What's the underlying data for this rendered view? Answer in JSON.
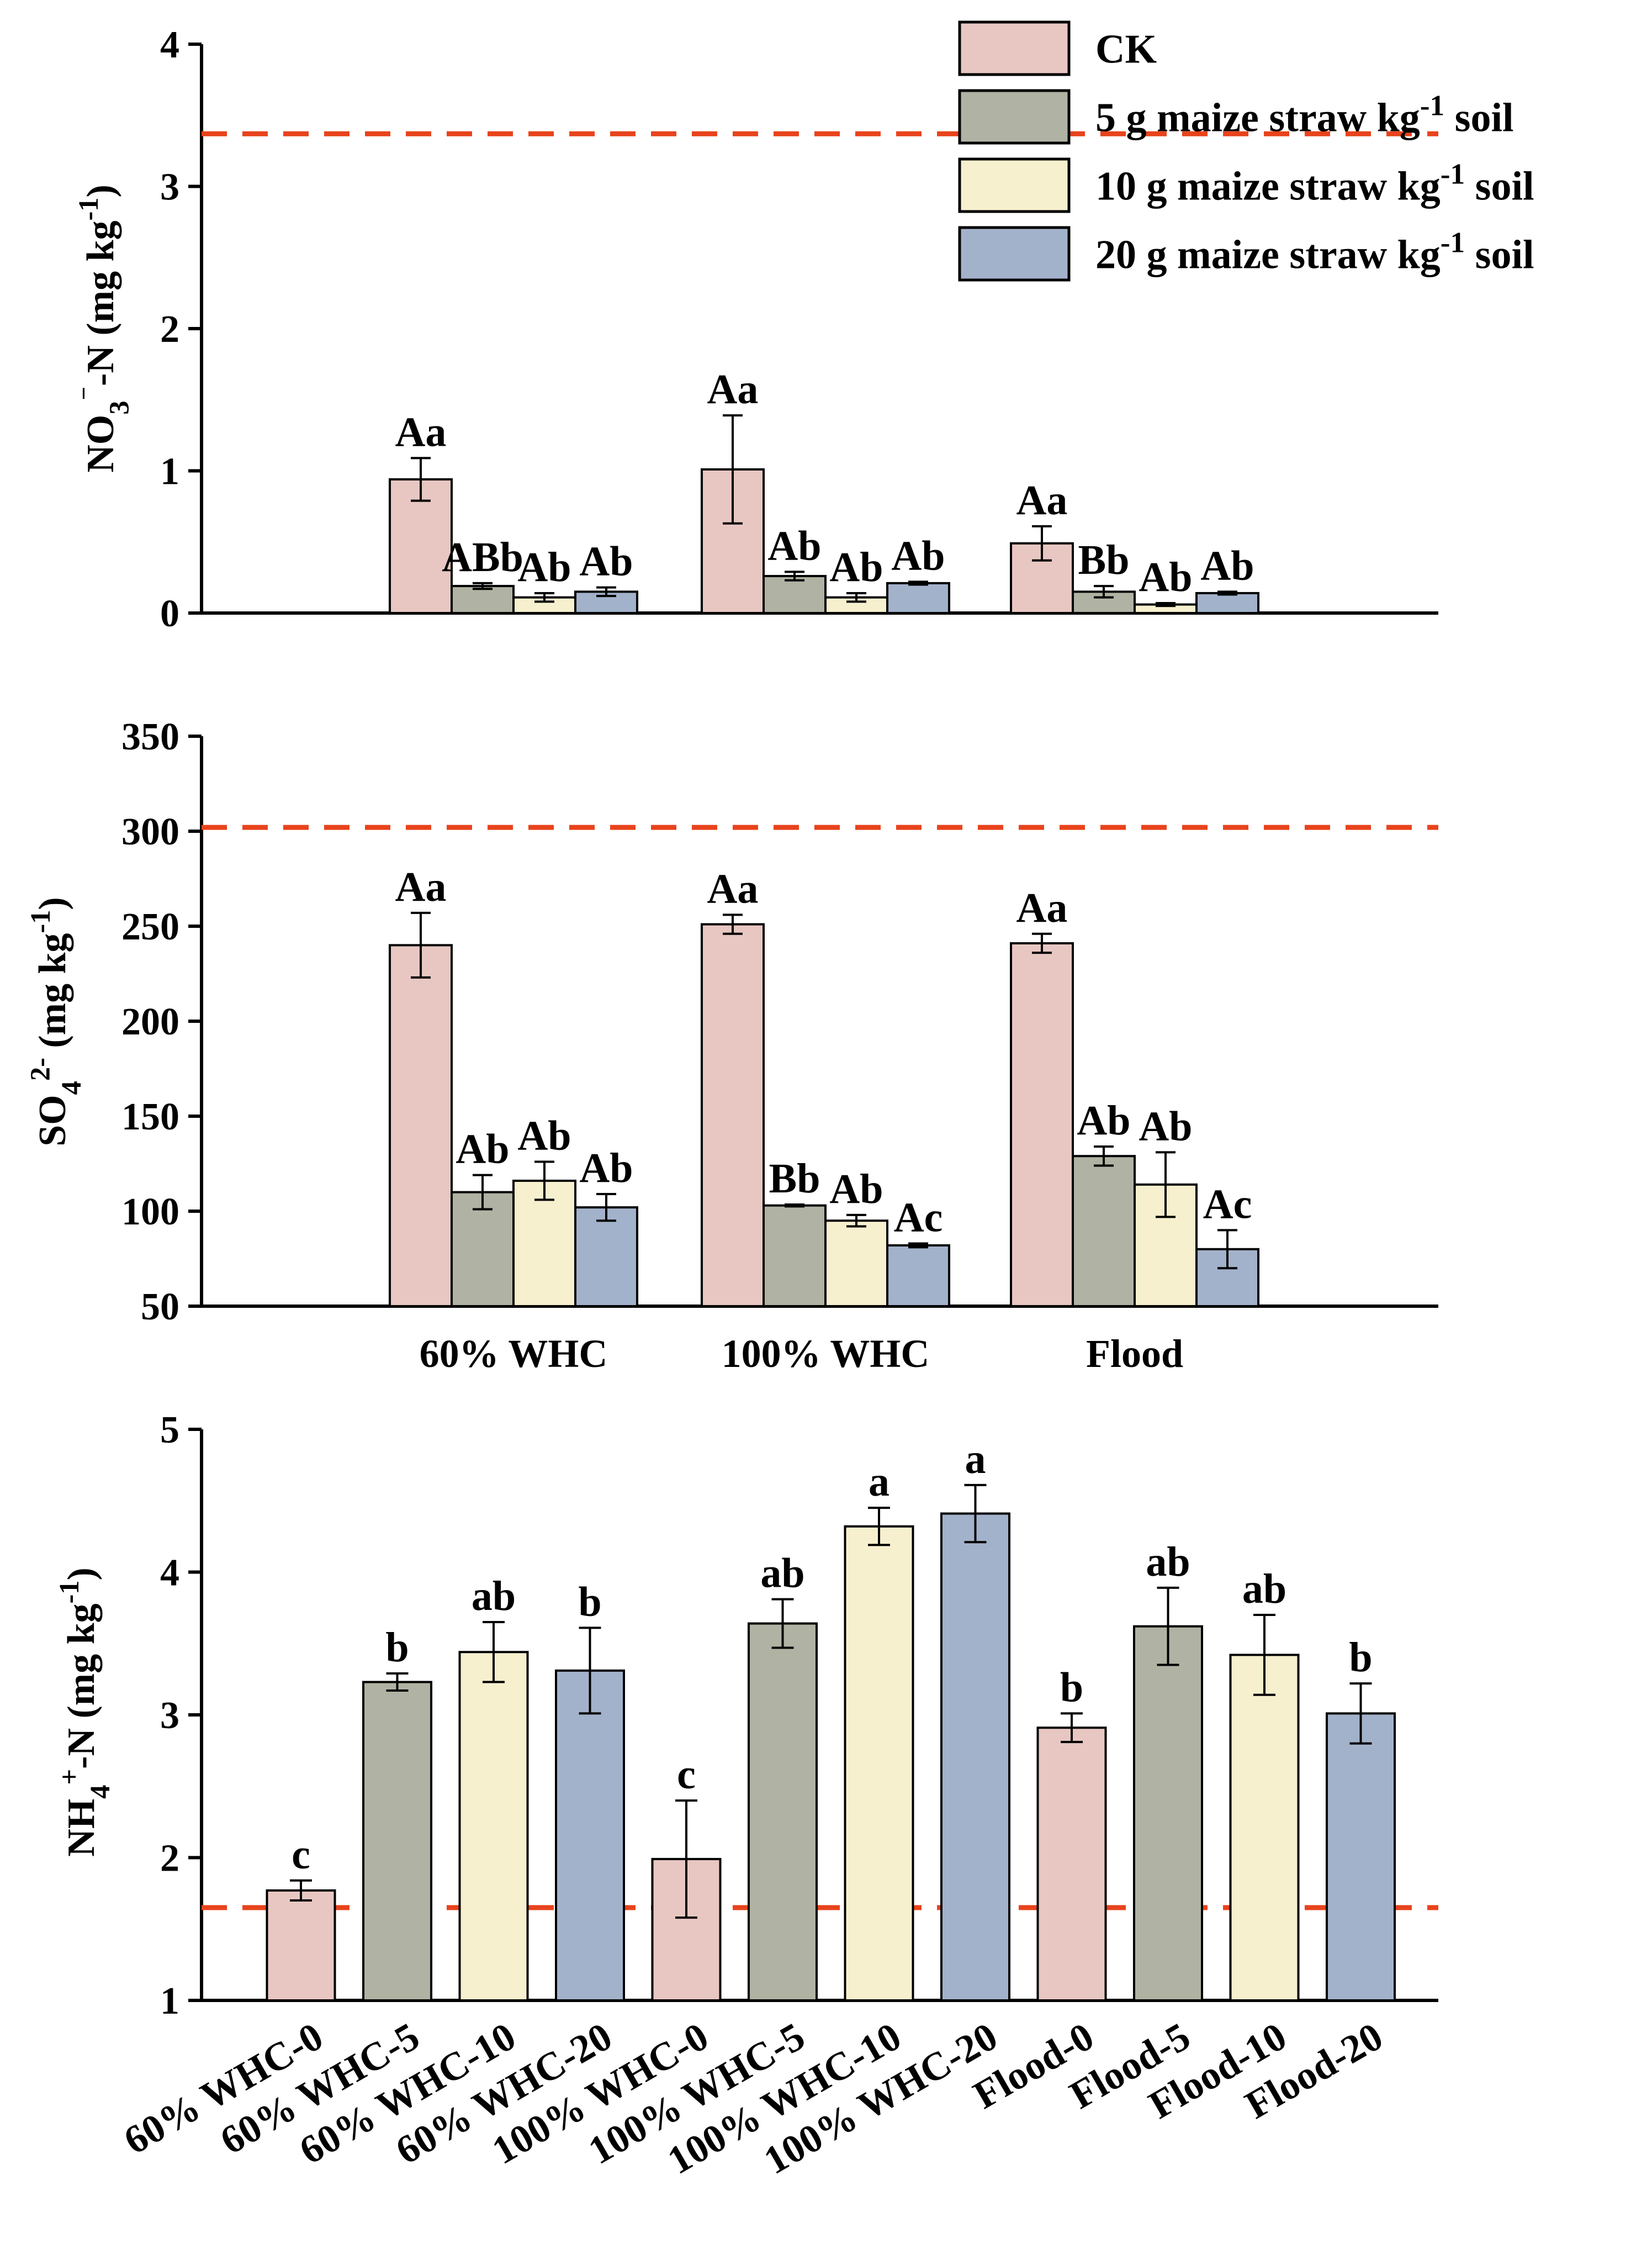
{
  "figure": {
    "legend": [
      {
        "label": "CK",
        "color": "#e8c7c2"
      },
      {
        "label": "5 g maize straw kg-1 soil",
        "color": "#b0b3a3"
      },
      {
        "label": "10 g maize straw kg-1 soil",
        "color": "#f7f0cf"
      },
      {
        "label": "20 g maize straw kg-1 soil",
        "color": "#a3b2cb"
      }
    ],
    "reference_line_color": "#e8431c"
  },
  "chart_data": [
    {
      "type": "bar",
      "panel": "top",
      "ylabel": "NO3--N (mg kg-1)",
      "categories": [
        "60% WHC",
        "100% WHC",
        "Flood"
      ],
      "yticks": [
        0,
        1,
        2,
        3,
        4
      ],
      "ylim": [
        0,
        4
      ],
      "reference_line": 3.37,
      "series": [
        {
          "name": "CK",
          "values": [
            0.94,
            1.01,
            0.49
          ],
          "errors": [
            0.15,
            0.38,
            0.12
          ],
          "letters": [
            "Aa",
            "Aa",
            "Aa"
          ]
        },
        {
          "name": "5 g maize straw kg-1 soil",
          "values": [
            0.19,
            0.26,
            0.15
          ],
          "errors": [
            0.02,
            0.03,
            0.04
          ],
          "letters": [
            "ABb",
            "Ab",
            "Bb"
          ]
        },
        {
          "name": "10 g maize straw kg-1 soil",
          "values": [
            0.11,
            0.11,
            0.06
          ],
          "errors": [
            0.03,
            0.03,
            0.01
          ],
          "letters": [
            "Ab",
            "Ab",
            "Ab"
          ]
        },
        {
          "name": "20 g maize straw kg-1 soil",
          "values": [
            0.15,
            0.21,
            0.14
          ],
          "errors": [
            0.03,
            0.01,
            0.01
          ],
          "letters": [
            "Ab",
            "Ab",
            "Ab"
          ]
        }
      ]
    },
    {
      "type": "bar",
      "panel": "middle",
      "ylabel": "SO42- (mg kg-1)",
      "categories": [
        "60% WHC",
        "100% WHC",
        "Flood"
      ],
      "yticks": [
        50,
        100,
        150,
        200,
        250,
        300,
        350
      ],
      "ylim": [
        50,
        350
      ],
      "reference_line": 302,
      "series": [
        {
          "name": "CK",
          "values": [
            240,
            251,
            241
          ],
          "errors": [
            17,
            5,
            5
          ],
          "letters": [
            "Aa",
            "Aa",
            "Aa"
          ]
        },
        {
          "name": "5 g maize straw kg-1 soil",
          "values": [
            110,
            103,
            129
          ],
          "errors": [
            9,
            0.5,
            5
          ],
          "letters": [
            "Ab",
            "Bb",
            "Ab"
          ]
        },
        {
          "name": "10 g maize straw kg-1 soil",
          "values": [
            116,
            95,
            114
          ],
          "errors": [
            10,
            3,
            17
          ],
          "letters": [
            "Ab",
            "Ab",
            "Ab"
          ]
        },
        {
          "name": "20 g maize straw kg-1 soil",
          "values": [
            102,
            82,
            80
          ],
          "errors": [
            7,
            1,
            10
          ],
          "letters": [
            "Ab",
            "Ac",
            "Ac"
          ]
        }
      ]
    },
    {
      "type": "bar",
      "panel": "bottom",
      "ylabel": "NH4+-N (mg kg-1)",
      "categories": [
        "60% WHC-0",
        "60% WHC-5",
        "60% WHC-10",
        "60% WHC-20",
        "100% WHC-0",
        "100% WHC-5",
        "100% WHC-10",
        "100% WHC-20",
        "Flood-0",
        "Flood-5",
        "Flood-10",
        "Flood-20"
      ],
      "yticks": [
        1,
        2,
        3,
        4,
        5
      ],
      "ylim": [
        1,
        5
      ],
      "reference_line": 1.65,
      "values": [
        1.77,
        3.23,
        3.44,
        3.31,
        1.99,
        3.64,
        4.32,
        4.41,
        2.91,
        3.62,
        3.42,
        3.01
      ],
      "errors": [
        0.07,
        0.06,
        0.21,
        0.3,
        0.41,
        0.17,
        0.13,
        0.2,
        0.1,
        0.27,
        0.28,
        0.21
      ],
      "letters": [
        "c",
        "b",
        "ab",
        "b",
        "c",
        "ab",
        "a",
        "a",
        "b",
        "ab",
        "ab",
        "b"
      ],
      "series_index": [
        0,
        1,
        2,
        3,
        0,
        1,
        2,
        3,
        0,
        1,
        2,
        3
      ]
    }
  ]
}
